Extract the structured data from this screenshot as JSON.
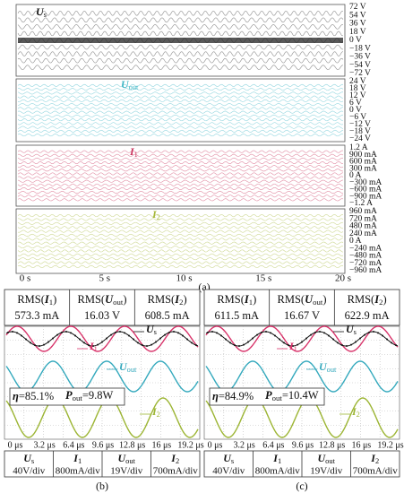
{
  "panel_a": {
    "strips": [
      {
        "label": {
          "symbol": "U",
          "sub": "s"
        },
        "ticks": [
          "72 V",
          "54 V",
          "36 V",
          "18 V",
          "0 V",
          "−18 V",
          "−36 V",
          "−54 V",
          "−72 V"
        ]
      },
      {
        "label": {
          "symbol": "U",
          "sub": "out"
        },
        "ticks": [
          "24 V",
          "18 V",
          "12 V",
          "6 V",
          "0 V",
          "−6 V",
          "−12 V",
          "−18 V",
          "−24 V"
        ]
      },
      {
        "label": {
          "symbol": "I",
          "sub": "1"
        },
        "ticks": [
          "1.2 A",
          "900 mA",
          "600 mA",
          "300 mA",
          "0 A",
          "−300 mA",
          "−600 mA",
          "−900 mA",
          "−1.2 A"
        ]
      },
      {
        "label": {
          "symbol": "I",
          "sub": "2"
        },
        "ticks": [
          "960 mA",
          "720 mA",
          "480 mA",
          "240 mA",
          "0 A",
          "−240 mA",
          "−480 mA",
          "−720 mA",
          "−960 mA"
        ]
      }
    ],
    "time_ticks": [
      "0 s",
      "5 s",
      "10 s",
      "15 s",
      "20 s"
    ],
    "caption": "(a)"
  },
  "panel_b": {
    "rms": [
      {
        "pre": "RMS(",
        "symbol": "I",
        "sub": "1",
        "post": ")",
        "value": "573.3 mA"
      },
      {
        "pre": "RMS(",
        "symbol": "U",
        "sub": "out",
        "post": ")",
        "value": "16.03 V"
      },
      {
        "pre": "RMS(",
        "symbol": "I",
        "sub": "2",
        "post": ")",
        "value": "608.5 mA"
      }
    ],
    "efficiency": {
      "symbol": "η",
      "text": "=85.1%"
    },
    "power": {
      "symbol": "P",
      "sub": "out",
      "text": "=9.8W"
    },
    "signals": [
      {
        "symbol": "U",
        "sub": "s"
      },
      {
        "symbol": "I",
        "sub": "1"
      },
      {
        "symbol": "U",
        "sub": "out"
      },
      {
        "symbol": "I",
        "sub": "2"
      }
    ],
    "time_ticks": [
      "0 μs",
      "3.2 μs",
      "6.4 μs",
      "9.6 μs",
      "12.8 μs",
      "16 μs",
      "19.2 μs"
    ],
    "scales": [
      {
        "symbol": "U",
        "sub": "s",
        "value": "40V/div"
      },
      {
        "symbol": "I",
        "sub": "1",
        "value": "800mA/div"
      },
      {
        "symbol": "U",
        "sub": "out",
        "value": "19V/div"
      },
      {
        "symbol": "I",
        "sub": "2",
        "value": "700mA/div"
      }
    ],
    "caption": "(b)"
  },
  "panel_c": {
    "rms": [
      {
        "pre": "RMS(",
        "symbol": "I",
        "sub": "1",
        "post": ")",
        "value": "611.5 mA"
      },
      {
        "pre": "RMS(",
        "symbol": "U",
        "sub": "out",
        "post": ")",
        "value": "16.67 V"
      },
      {
        "pre": "RMS(",
        "symbol": "I",
        "sub": "2",
        "post": ")",
        "value": "622.9 mA"
      }
    ],
    "efficiency": {
      "symbol": "η",
      "text": "=84.9%"
    },
    "power": {
      "symbol": "P",
      "sub": "out",
      "text": "=10.4W"
    },
    "signals": [
      {
        "symbol": "U",
        "sub": "s"
      },
      {
        "symbol": "I",
        "sub": "1"
      },
      {
        "symbol": "U",
        "sub": "out"
      },
      {
        "symbol": "I",
        "sub": "2"
      }
    ],
    "time_ticks": [
      "0 μs",
      "3.2 μs",
      "6.4 μs",
      "9.6 μs",
      "12.8 μs",
      "16 μs",
      "19.2 μs"
    ],
    "scales": [
      {
        "symbol": "U",
        "sub": "s",
        "value": "40V/div"
      },
      {
        "symbol": "I",
        "sub": "1",
        "value": "800mA/div"
      },
      {
        "symbol": "U",
        "sub": "out",
        "value": "19V/div"
      },
      {
        "symbol": "I",
        "sub": "2",
        "value": "700mA/div"
      }
    ],
    "caption": "(c)"
  }
}
